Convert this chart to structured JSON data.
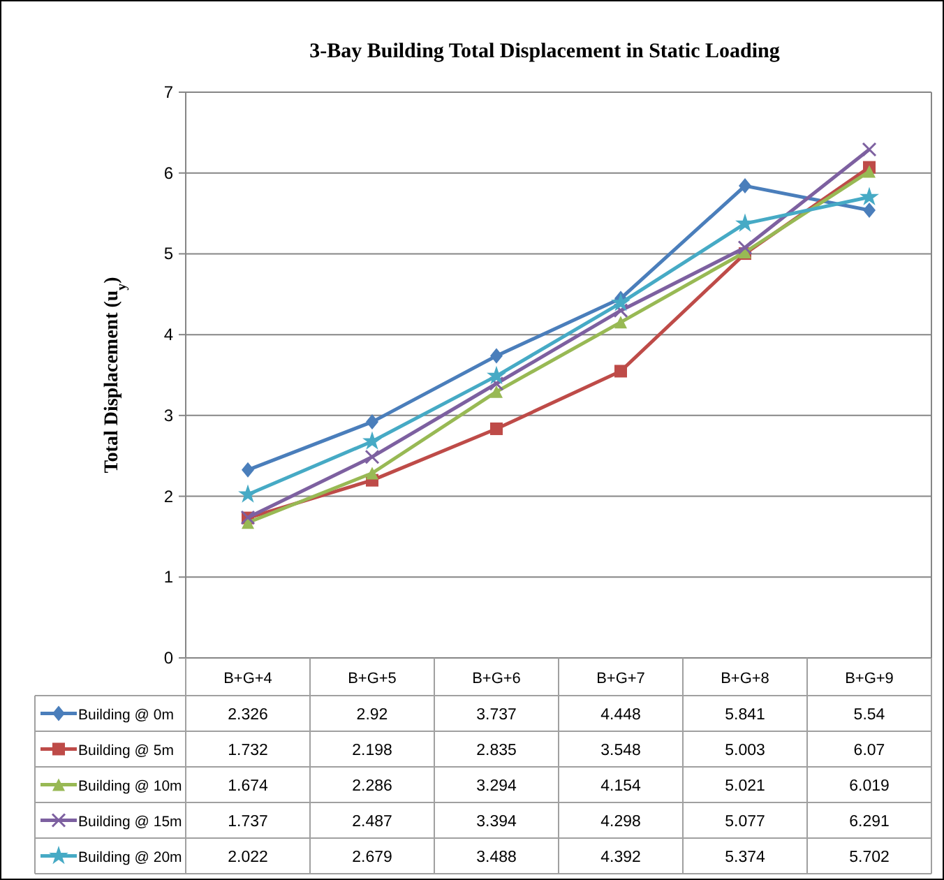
{
  "chart_data": {
    "type": "line",
    "title": "3-Bay Building  Total Displacement in Static Loading",
    "ylabel": "Total Displacement    (u$_{y}$)",
    "categories": [
      "B+G+4",
      "B+G+5",
      "B+G+6",
      "B+G+7",
      "B+G+8",
      "B+G+9"
    ],
    "series": [
      {
        "name": "Building @ 0m",
        "color": "#4a7ebb",
        "marker": "diamond",
        "values": [
          2.326,
          2.92,
          3.737,
          4.448,
          5.841,
          5.54
        ]
      },
      {
        "name": "Building @ 5m",
        "color": "#be4b48",
        "marker": "square",
        "values": [
          1.732,
          2.198,
          2.835,
          3.548,
          5.003,
          6.07
        ]
      },
      {
        "name": "Building @ 10m",
        "color": "#98b954",
        "marker": "triangle",
        "values": [
          1.674,
          2.286,
          3.294,
          4.154,
          5.021,
          6.019
        ]
      },
      {
        "name": "Building @ 15m",
        "color": "#7d60a0",
        "marker": "cross",
        "values": [
          1.737,
          2.487,
          3.394,
          4.298,
          5.077,
          6.291
        ]
      },
      {
        "name": "Building @ 20m",
        "color": "#46aac5",
        "marker": "star",
        "values": [
          2.022,
          2.679,
          3.488,
          4.392,
          5.374,
          5.702
        ]
      }
    ],
    "ylim": [
      0,
      7
    ],
    "yticks": [
      0,
      1,
      2,
      3,
      4,
      5,
      6,
      7
    ],
    "grid": "y",
    "legend": "bottom",
    "data_labels": true,
    "line_style": "solid"
  }
}
